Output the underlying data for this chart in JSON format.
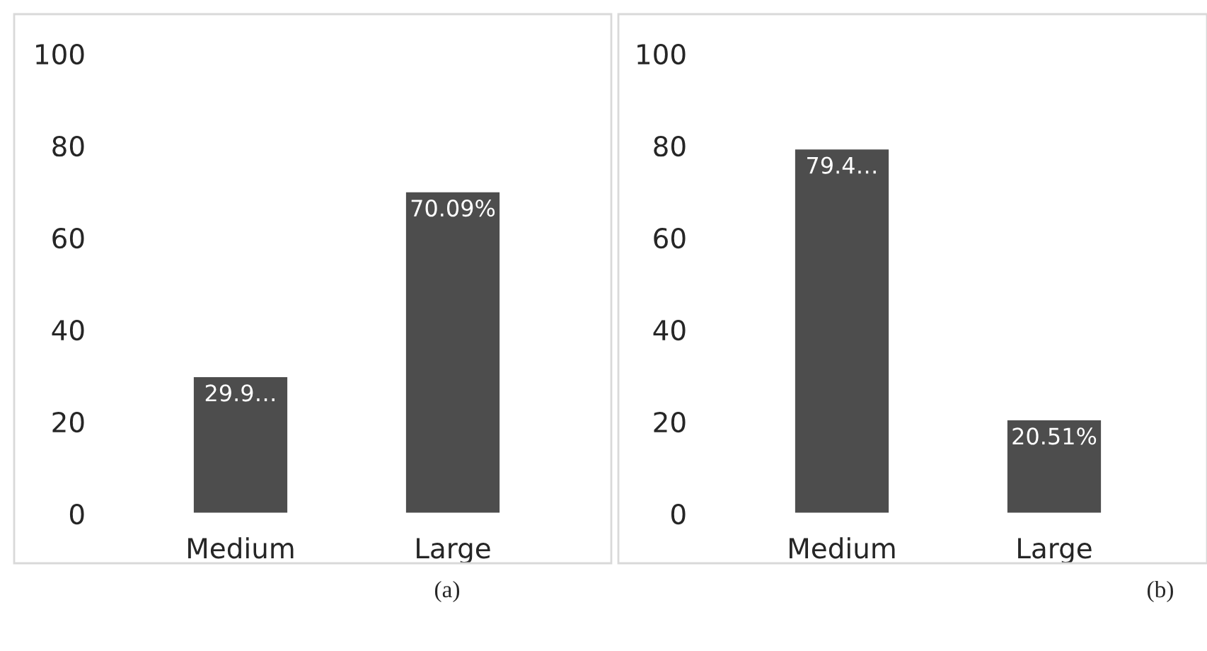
{
  "chart_data": [
    {
      "type": "bar",
      "categories": [
        "Medium",
        "Large"
      ],
      "values": [
        29.9,
        70.09
      ],
      "value_labels": [
        "29.9…",
        "70.09%"
      ],
      "color": "#4d4d4d",
      "ylim": [
        0,
        100
      ],
      "yticks": [
        0,
        20,
        40,
        60,
        80,
        100
      ],
      "grid": false,
      "annotations": [
        "(a)"
      ]
    },
    {
      "type": "bar",
      "categories": [
        "Medium",
        "Large"
      ],
      "values": [
        79.4,
        20.51
      ],
      "value_labels": [
        "79.4…",
        "20.51%"
      ],
      "color": "#4d4d4d",
      "ylim": [
        0,
        100
      ],
      "yticks": [
        0,
        20,
        40,
        60,
        80,
        100
      ],
      "grid": false,
      "annotations": [
        "(b)"
      ]
    }
  ]
}
